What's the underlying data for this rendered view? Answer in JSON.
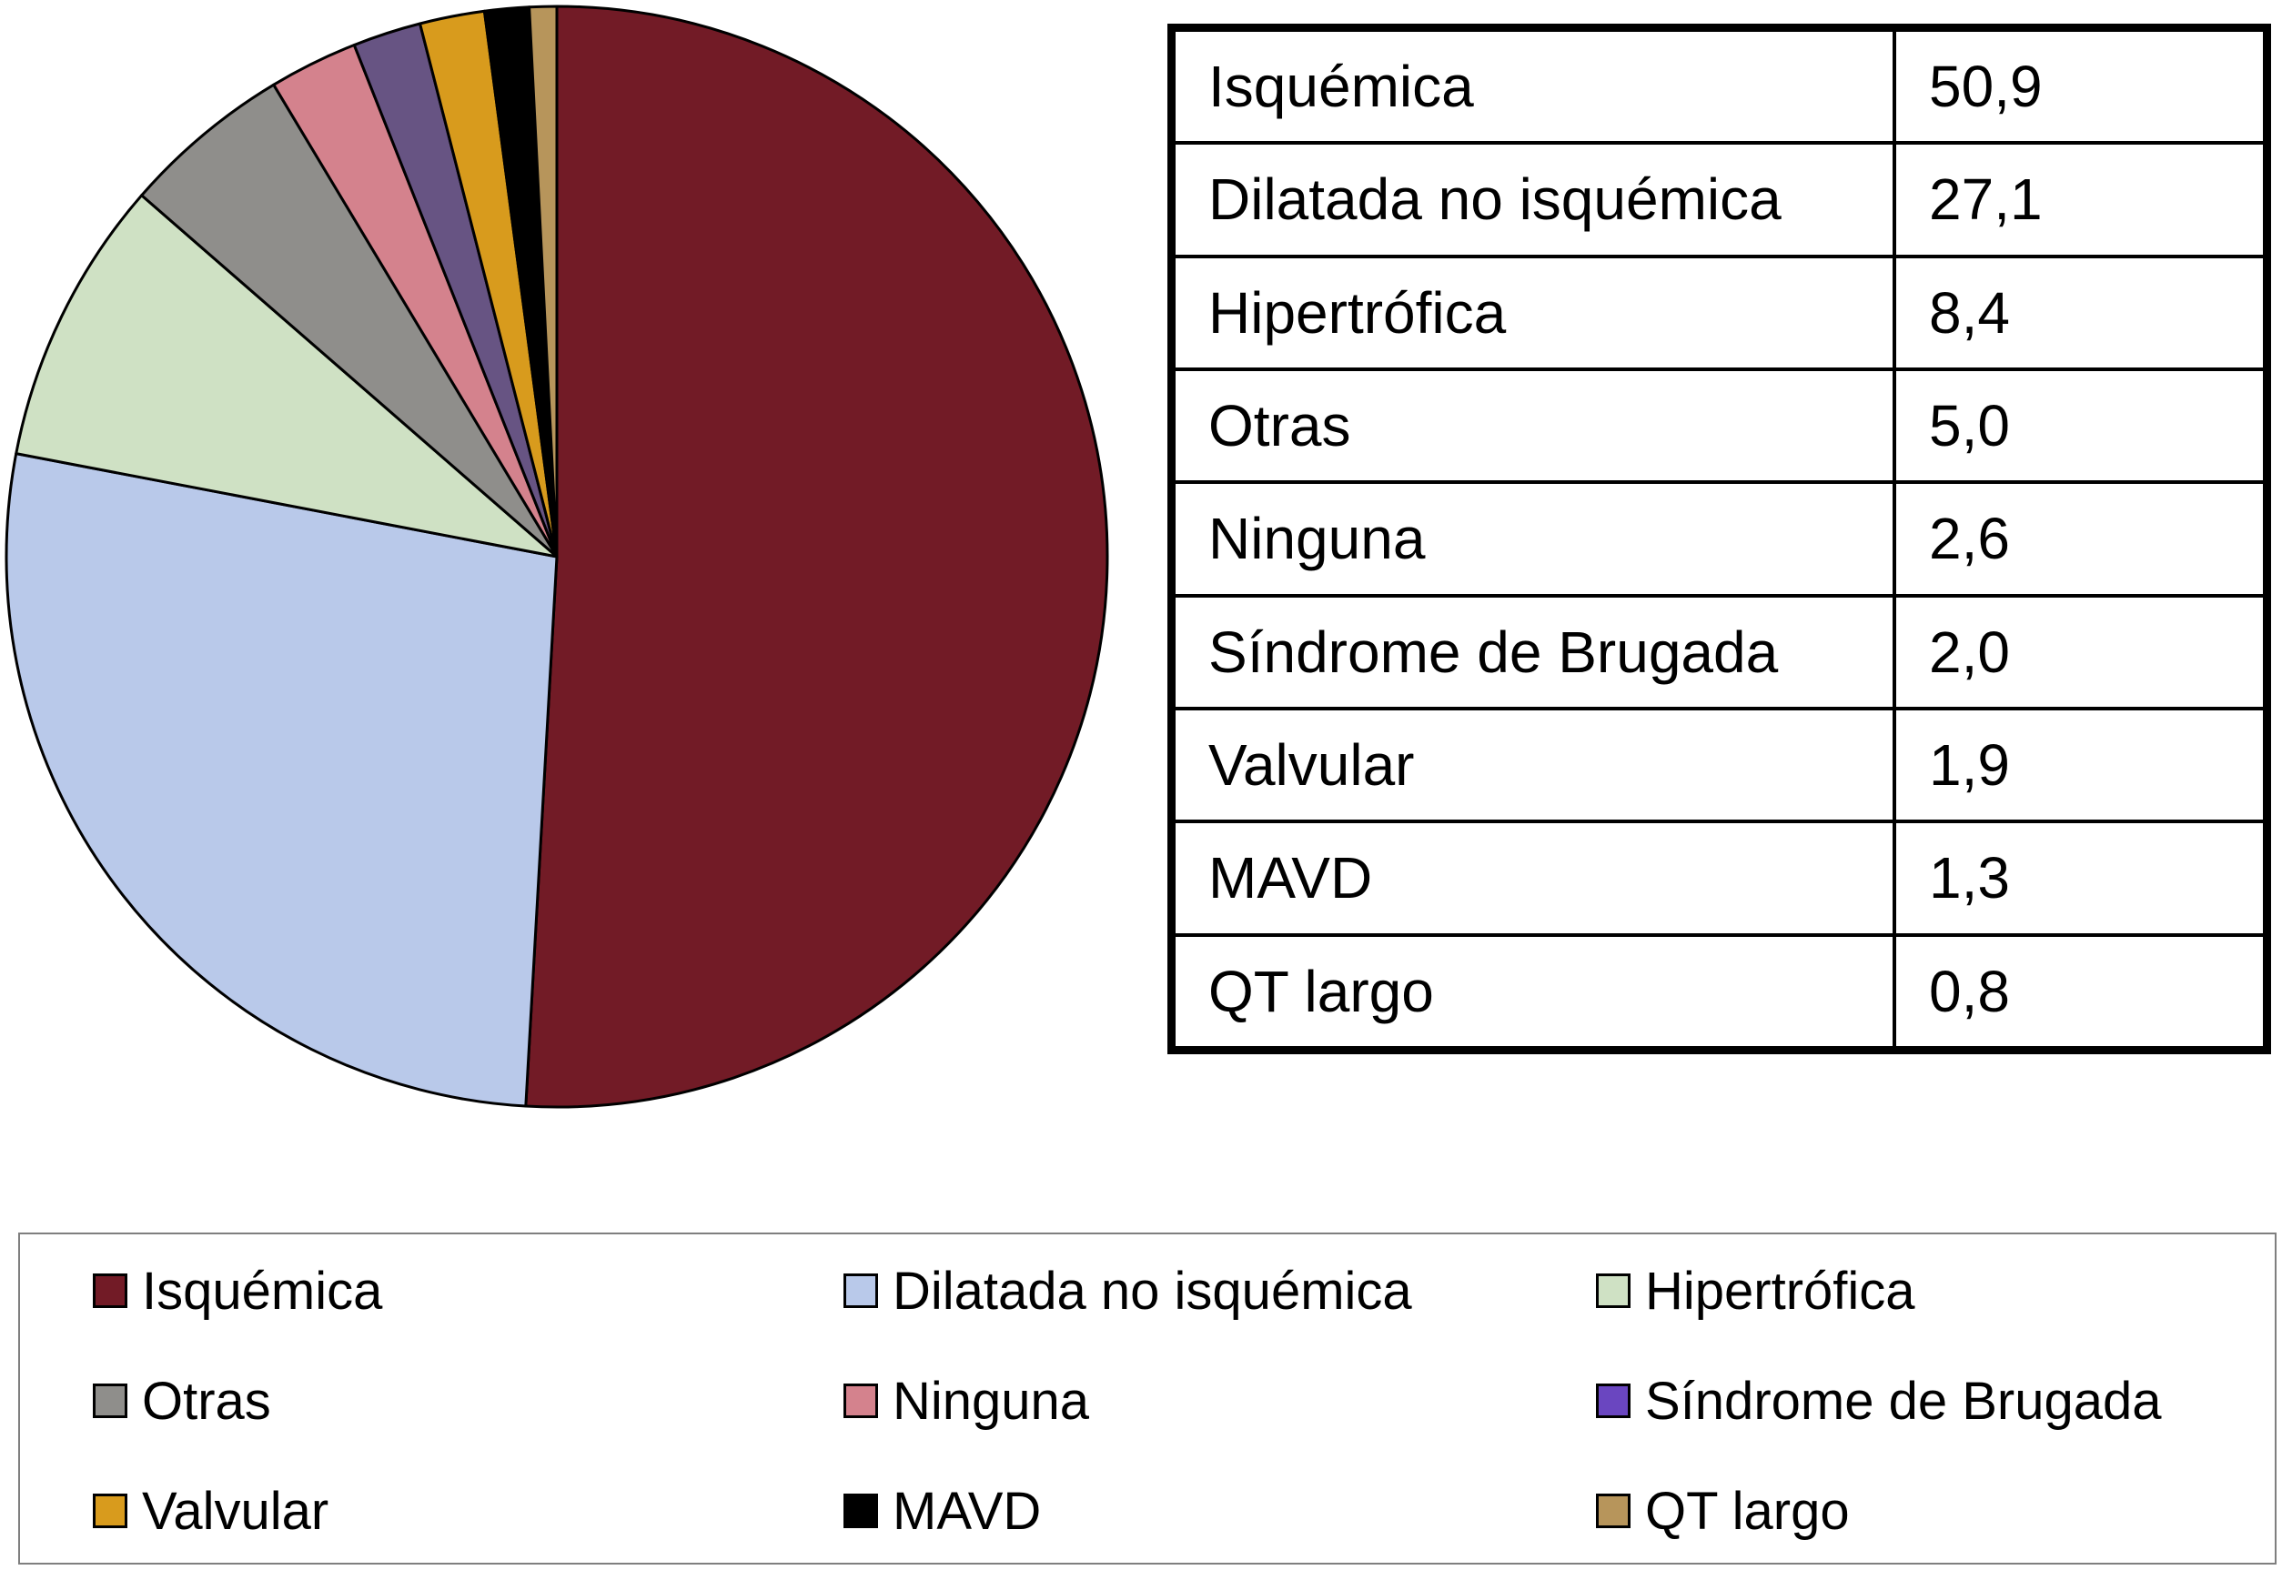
{
  "chart_data": {
    "type": "pie",
    "categories": [
      "Isquémica",
      "Dilatada no isquémica",
      "Hipertrófica",
      "Otras",
      "Ninguna",
      "Síndrome de Brugada",
      "Valvular",
      "MAVD",
      "QT largo"
    ],
    "values": [
      50.9,
      27.1,
      8.4,
      5.0,
      2.6,
      2.0,
      1.9,
      1.3,
      0.8
    ],
    "colors": [
      "#721b26",
      "#b9c9ea",
      "#cfe1c4",
      "#8f8e8b",
      "#d4828d",
      "#675483",
      "#d89b1d",
      "#000000",
      "#b7955b"
    ],
    "legend_colors": [
      "#721b26",
      "#b9c9ea",
      "#cfe1c4",
      "#8f8e8b",
      "#d4828d",
      "#6a46c0",
      "#d89b1d",
      "#000000",
      "#b7955b"
    ],
    "legend_position": "bottom",
    "start_angle": "12 o'clock, clockwise"
  },
  "table": {
    "rows": [
      {
        "category": "Isquémica",
        "value": "50,9"
      },
      {
        "category": "Dilatada no isquémica",
        "value": "27,1"
      },
      {
        "category": "Hipertrófica",
        "value": "8,4"
      },
      {
        "category": "Otras",
        "value": "5,0"
      },
      {
        "category": "Ninguna",
        "value": "2,6"
      },
      {
        "category": "Síndrome de Brugada",
        "value": "2,0"
      },
      {
        "category": "Valvular",
        "value": "1,9"
      },
      {
        "category": "MAVD",
        "value": "1,3"
      },
      {
        "category": "QT largo",
        "value": "0,8"
      }
    ]
  },
  "legend": {
    "items": [
      {
        "label": "Isquémica"
      },
      {
        "label": "Dilatada no isquémica"
      },
      {
        "label": "Hipertrófica"
      },
      {
        "label": "Otras"
      },
      {
        "label": "Ninguna"
      },
      {
        "label": "Síndrome de Brugada"
      },
      {
        "label": "Valvular"
      },
      {
        "label": "MAVD"
      },
      {
        "label": "QT largo"
      }
    ]
  }
}
